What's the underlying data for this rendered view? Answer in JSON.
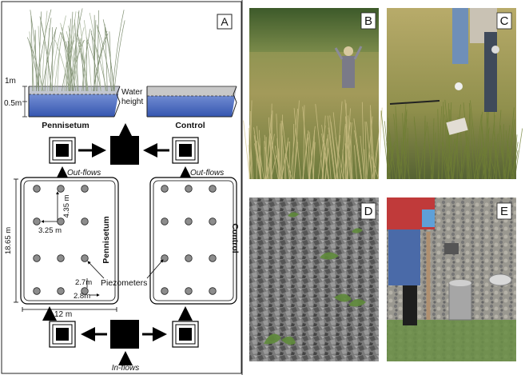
{
  "panels": {
    "A": {
      "letter": "A"
    },
    "B": {
      "letter": "B"
    },
    "C": {
      "letter": "C"
    },
    "D": {
      "letter": "D"
    },
    "E": {
      "letter": "E"
    }
  },
  "diagram": {
    "depth_1m": "1m",
    "depth_05m": "0.5m",
    "water_height": [
      "Water",
      "height"
    ],
    "pennisetum": "Pennisetum",
    "control": "Control",
    "out_flows": "Out-flows",
    "in_flows": "In-flows",
    "dim_435": "4.35 m",
    "dim_325": "3.25 m",
    "dim_1865": "18.65 m",
    "dim_27": "2.7m",
    "dim_28": "2.8m",
    "dim_12": "12 m",
    "piezometers": "Piezometers",
    "colors": {
      "water": "#4a6fc4",
      "water_light": "#9fb4e8",
      "gravel": "#b9b9b9",
      "grass": "#8a9a7a",
      "piezometer": "#888888"
    }
  }
}
